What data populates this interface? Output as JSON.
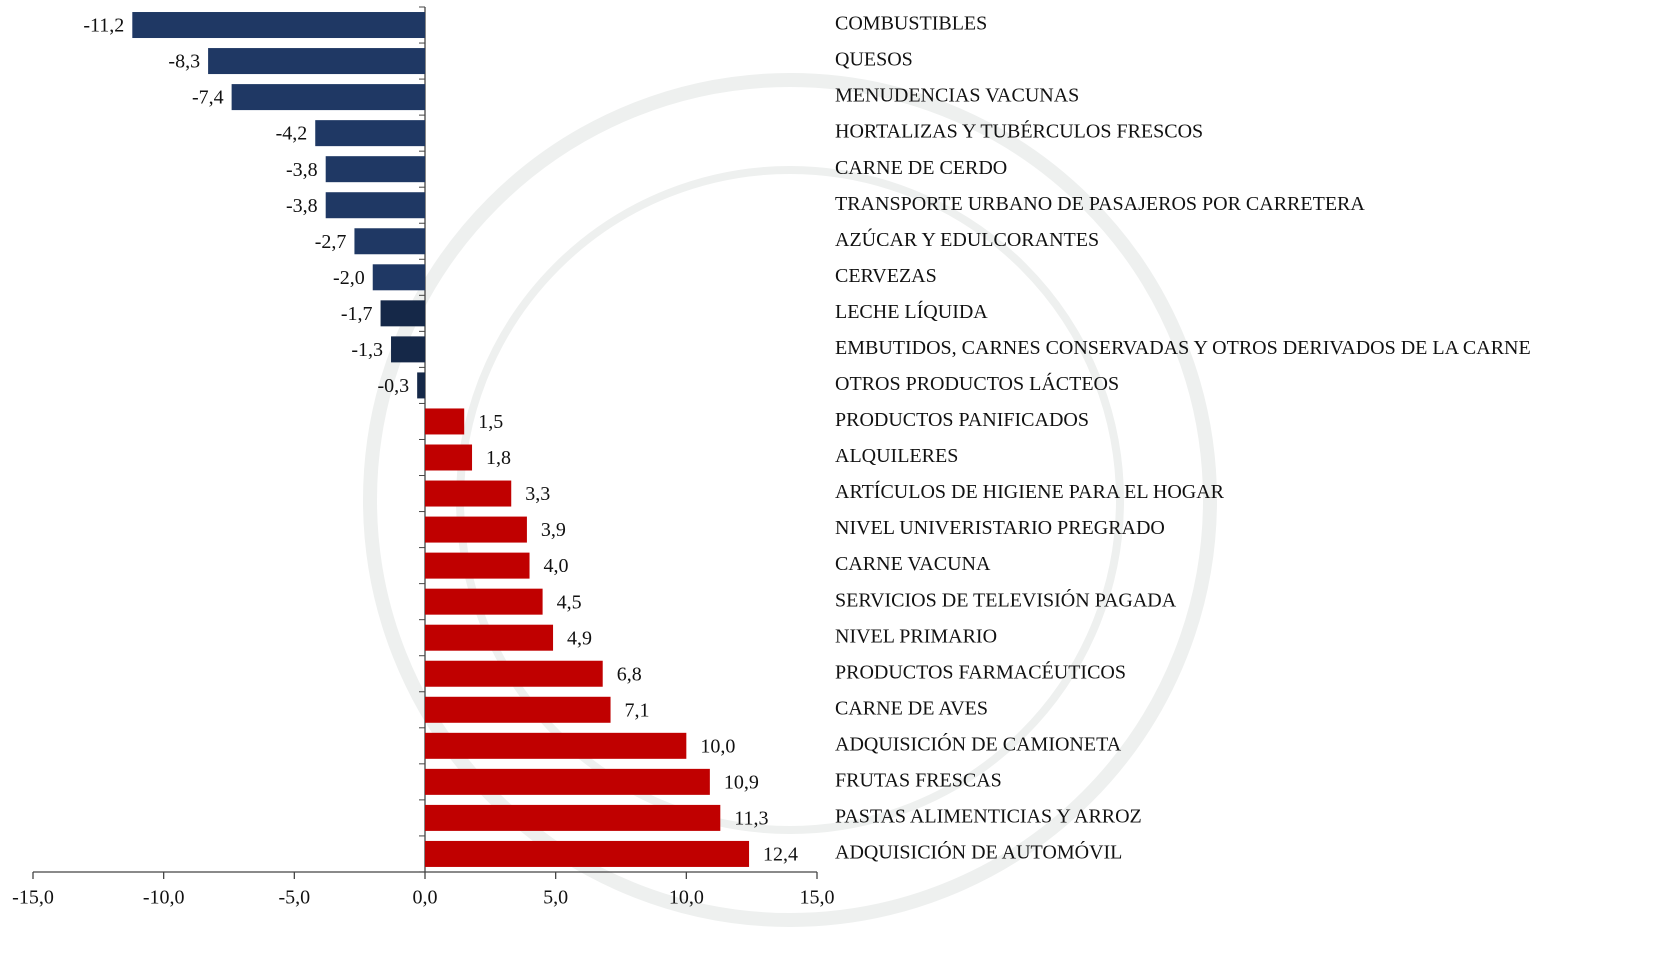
{
  "chart_data": {
    "type": "barh",
    "categories": [
      "COMBUSTIBLES",
      "QUESOS",
      "MENUDENCIAS VACUNAS",
      "HORTALIZAS Y TUBÉRCULOS FRESCOS",
      "CARNE DE CERDO",
      "TRANSPORTE URBANO DE PASAJEROS POR CARRETERA",
      "AZÚCAR Y EDULCORANTES",
      "CERVEZAS",
      "LECHE LÍQUIDA",
      "EMBUTIDOS, CARNES CONSERVADAS Y OTROS DERIVADOS DE LA CARNE",
      "OTROS PRODUCTOS LÁCTEOS",
      "PRODUCTOS PANIFICADOS",
      "ALQUILERES",
      "ARTÍCULOS DE HIGIENE PARA EL HOGAR",
      "NIVEL UNIVERISTARIO PREGRADO",
      "CARNE VACUNA",
      "SERVICIOS DE TELEVISIÓN PAGADA",
      "NIVEL PRIMARIO",
      "PRODUCTOS FARMACÉUTICOS",
      "CARNE DE AVES",
      "ADQUISICIÓN DE CAMIONETA",
      "FRUTAS FRESCAS",
      "PASTAS ALIMENTICIAS Y ARROZ",
      "ADQUISICIÓN DE AUTOMÓVIL"
    ],
    "values": [
      -11.2,
      -8.3,
      -7.4,
      -4.2,
      -3.8,
      -3.8,
      -2.7,
      -2.0,
      -1.7,
      -1.3,
      -0.3,
      1.5,
      1.8,
      3.3,
      3.9,
      4.0,
      4.5,
      4.9,
      6.8,
      7.1,
      10.0,
      10.9,
      11.3,
      12.4
    ],
    "value_labels": [
      "-11,2",
      "-8,3",
      "-7,4",
      "-4,2",
      "-3,8",
      "-3,8",
      "-2,7",
      "-2,0",
      "-1,7",
      "-1,3",
      "-0,3",
      "1,5",
      "1,8",
      "3,3",
      "3,9",
      "4,0",
      "4,5",
      "4,9",
      "6,8",
      "7,1",
      "10,0",
      "10,9",
      "11,3",
      "12,4"
    ],
    "colors": [
      "#1f3864",
      "#1f3864",
      "#1f3864",
      "#1f3864",
      "#1f3864",
      "#1f3864",
      "#1f3864",
      "#1f3864",
      "#152848",
      "#152848",
      "#152848",
      "#c00000",
      "#c00000",
      "#c00000",
      "#c00000",
      "#c00000",
      "#c00000",
      "#c00000",
      "#c00000",
      "#c00000",
      "#c00000",
      "#c00000",
      "#c00000",
      "#c00000"
    ],
    "xlim": [
      -15,
      15
    ],
    "xticks": [
      {
        "value": -15,
        "label": "-15,0"
      },
      {
        "value": -10,
        "label": "-10,0"
      },
      {
        "value": -5,
        "label": "-5,0"
      },
      {
        "value": 0,
        "label": "0,0"
      },
      {
        "value": 5,
        "label": "5,0"
      },
      {
        "value": 10,
        "label": "10,0"
      },
      {
        "value": 15,
        "label": "15,0"
      }
    ]
  }
}
